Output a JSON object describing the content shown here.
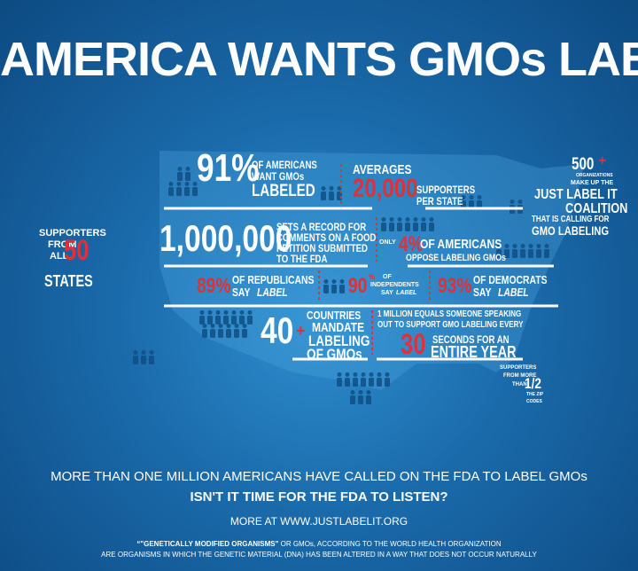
{
  "title": "AMERICA WANTS GMOs LABELED",
  "states": {
    "l1": "SUPPORTERS",
    "l2": "FROM",
    "l3": "ALL",
    "num": "50",
    "l4": "STATES"
  },
  "want": {
    "num": "91%",
    "l1": "OF AMERICANS",
    "l2": "WANT GMOs",
    "l3": "LABELED"
  },
  "average": {
    "l1": "AVERAGES",
    "num": "20,000",
    "l2": "SUPPORTERS",
    "l3": "PER STATE"
  },
  "coalition": {
    "num": "500",
    "plus": "+",
    "l1": "ORGANIZATIONS",
    "l2": "MAKE UP THE",
    "l3": "JUST LABEL IT",
    "l4": "COALITION",
    "l5": "THAT IS CALLING FOR",
    "l6": "GMO LABELING"
  },
  "record": {
    "num": "1,000,000",
    "l1": "SETS A RECORD FOR",
    "l2": "COMMENTS ON A FOOD",
    "l3": "PETITION SUBMITTED",
    "l4": "TO THE FDA"
  },
  "oppose": {
    "l1": "ONLY",
    "num": "4%",
    "l2": "OF AMERICANS",
    "l3": "OPPOSE LABELING GMOs"
  },
  "republicans": {
    "num": "89%",
    "l1": "OF REPUBLICANS",
    "say": "SAY",
    "label": "LABEL"
  },
  "independents": {
    "num": "90",
    "pct": "%",
    "l1": "OF",
    "l2": "INDEPENDENTS",
    "say": "SAY",
    "label": "LABEL"
  },
  "democrats": {
    "num": "93%",
    "l1": "OF DEMOCRATS",
    "say": "SAY",
    "label": "LABEL"
  },
  "countries": {
    "num": "40",
    "plus": "+",
    "l1": "COUNTRIES",
    "l2": "MANDATE",
    "l3": "LABELING",
    "l4": "OF GMOs"
  },
  "million": {
    "l1": "1 MILLION EQUALS SOMEONE SPEAKING",
    "l2": "OUT TO SUPPORT GMO LABELING EVERY",
    "num": "30",
    "l3": "SECONDS FOR AN",
    "l4": "ENTIRE YEAR"
  },
  "zip": {
    "l1": "SUPPORTERS",
    "l2": "FROM MORE",
    "l3": "THAN",
    "num": "1/2",
    "l4": "THE ZIP",
    "l5": "CODES"
  },
  "footer": {
    "line1": "MORE THAN ONE MILLION AMERICANS HAVE CALLED ON THE FDA TO LABEL GMOs",
    "line2": "ISN'T IT TIME FOR THE FDA TO LISTEN?",
    "line3": "MORE AT WWW.JUSTLABELIT.ORG",
    "line4a": "“\"GENETICALLY MODIFIED ORGANISMS\"",
    "line4b": " OR GMOs, ACCORDING TO THE WORLD HEALTH ORGANIZATION",
    "line5": "ARE ORGANISMS IN WHICH THE GENETIC MATERIAL (DNA) HAS BEEN ALTERED IN A WAY THAT DOES NOT OCCUR NATURALLY"
  }
}
